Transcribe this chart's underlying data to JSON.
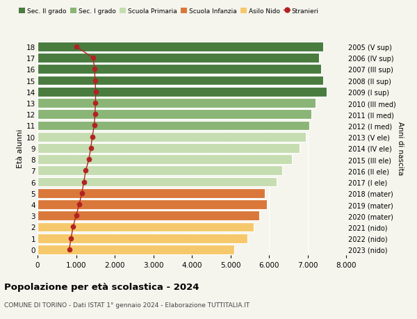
{
  "ages": [
    0,
    1,
    2,
    3,
    4,
    5,
    6,
    7,
    8,
    9,
    10,
    11,
    12,
    13,
    14,
    15,
    16,
    17,
    18
  ],
  "bar_values": [
    5100,
    5450,
    5600,
    5750,
    5950,
    5900,
    6200,
    6350,
    6600,
    6800,
    6950,
    7050,
    7100,
    7200,
    7500,
    7400,
    7350,
    7300,
    7400
  ],
  "stranieri_values": [
    820,
    870,
    920,
    1000,
    1080,
    1150,
    1200,
    1250,
    1330,
    1380,
    1420,
    1470,
    1490,
    1500,
    1510,
    1490,
    1480,
    1440,
    1000
  ],
  "right_labels": [
    "2023 (nido)",
    "2022 (nido)",
    "2021 (nido)",
    "2020 (mater)",
    "2019 (mater)",
    "2018 (mater)",
    "2017 (I ele)",
    "2016 (II ele)",
    "2015 (III ele)",
    "2014 (IV ele)",
    "2013 (V ele)",
    "2012 (I med)",
    "2011 (II med)",
    "2010 (III med)",
    "2009 (I sup)",
    "2008 (II sup)",
    "2007 (III sup)",
    "2006 (IV sup)",
    "2005 (V sup)"
  ],
  "bar_colors": [
    "#f5c96b",
    "#f5c96b",
    "#f5c96b",
    "#d9783a",
    "#d9783a",
    "#d9783a",
    "#c5ddb0",
    "#c5ddb0",
    "#c5ddb0",
    "#c5ddb0",
    "#c5ddb0",
    "#8ab576",
    "#8ab576",
    "#8ab576",
    "#4a7c3f",
    "#4a7c3f",
    "#4a7c3f",
    "#4a7c3f",
    "#4a7c3f"
  ],
  "stranieri_color": "#b22222",
  "legend_labels": [
    "Sec. II grado",
    "Sec. I grado",
    "Scuola Primaria",
    "Scuola Infanzia",
    "Asilo Nido",
    "Stranieri"
  ],
  "legend_colors": [
    "#4a7c3f",
    "#8ab576",
    "#c5ddb0",
    "#d9783a",
    "#f5c96b",
    "#b22222"
  ],
  "title": "Popolazione per età scolastica - 2024",
  "subtitle": "COMUNE DI TORINO - Dati ISTAT 1° gennaio 2024 - Elaborazione TUTTITALIA.IT",
  "ylabel": "Età alunni",
  "ylabel2": "Anni di nascita",
  "xlim": [
    0,
    8000
  ],
  "xticks": [
    0,
    1000,
    2000,
    3000,
    4000,
    5000,
    6000,
    7000,
    8000
  ],
  "bg_color": "#f5f5ee",
  "grid_color": "#ffffff"
}
